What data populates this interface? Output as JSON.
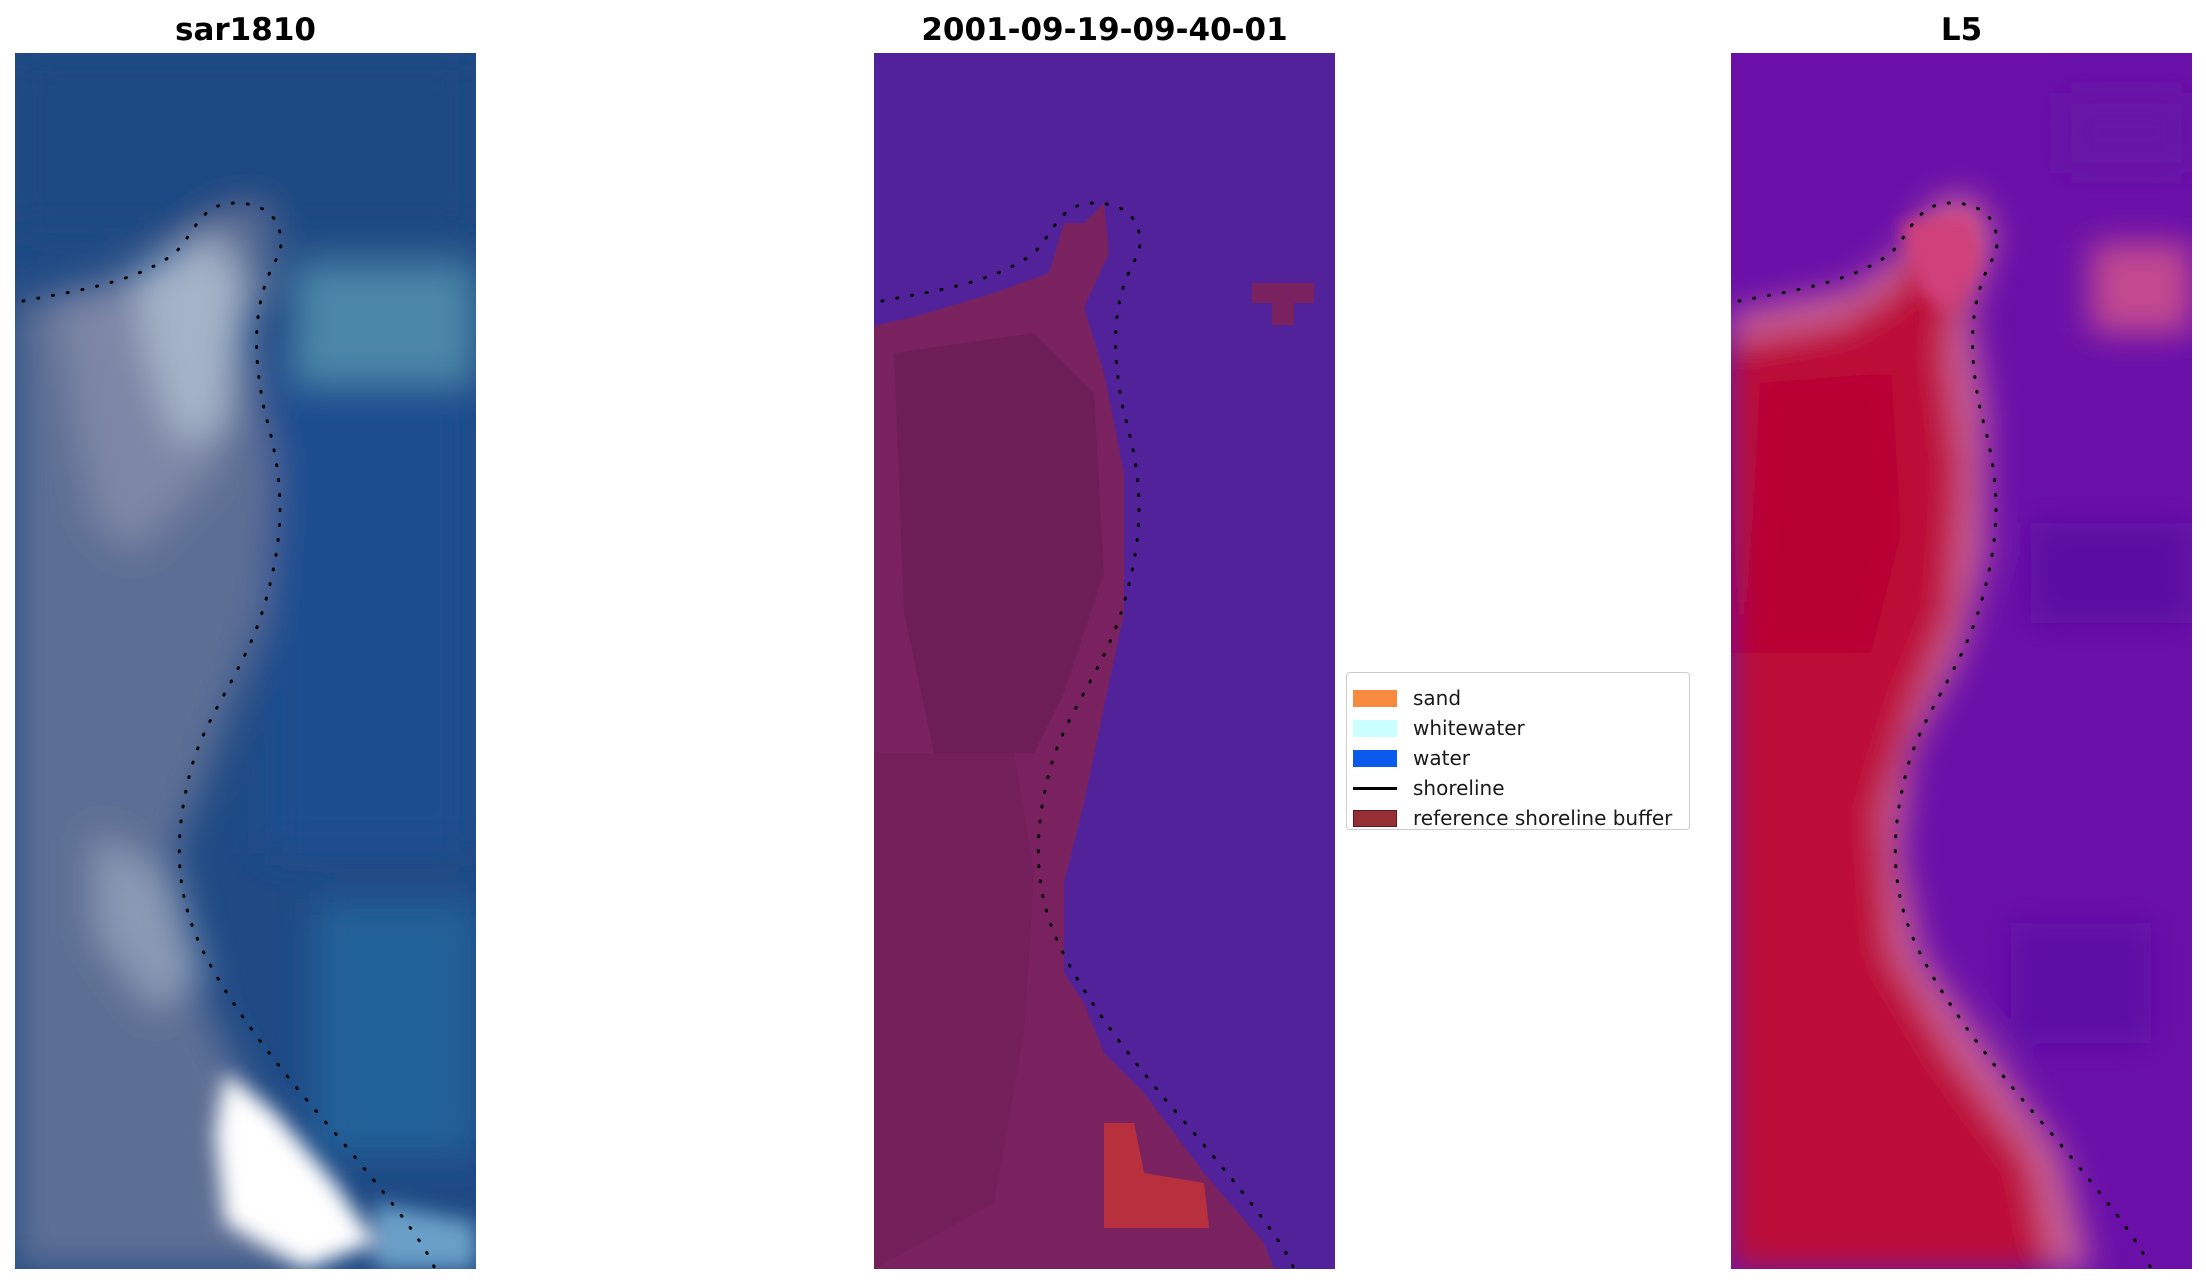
{
  "panels": [
    {
      "title": "sar1810",
      "image": "rgb satellite image"
    },
    {
      "title": "2001-09-19-09-40-01",
      "image": "classified image"
    },
    {
      "title": "L5",
      "image": "water index image"
    }
  ],
  "legend": {
    "items": [
      {
        "label": "sand",
        "color": "#f88a3f",
        "kind": "patch"
      },
      {
        "label": "whitewater",
        "color": "#ccffff",
        "kind": "patch"
      },
      {
        "label": "water",
        "color": "#0a5aed",
        "kind": "patch"
      },
      {
        "label": "shoreline",
        "color": "#000000",
        "kind": "line"
      },
      {
        "label": "reference shoreline buffer",
        "color": "#962e36",
        "kind": "patch"
      }
    ]
  },
  "colors": {
    "rgb_water": "#1f4a84",
    "rgb_sand": "#7a88a8",
    "rgb_foam": "#ffffff",
    "class_water": "#52229a",
    "class_buffer": "#7a2260",
    "class_sand_patch": "#b8303e",
    "index_water": "#6a10a8",
    "index_land": "#bc0838",
    "index_transition": "#c86098"
  }
}
